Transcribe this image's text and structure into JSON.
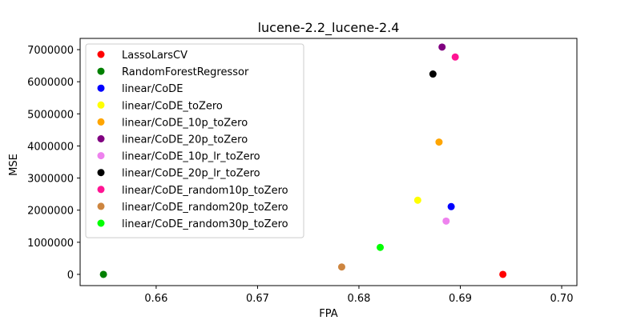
{
  "chart_data": {
    "type": "scatter",
    "title": "lucene-2.2_lucene-2.4",
    "xlabel": "FPA",
    "ylabel": "MSE",
    "xlim": [
      0.6525,
      0.7015
    ],
    "ylim": [
      -350000,
      7350000
    ],
    "xticks": [
      0.66,
      0.67,
      0.68,
      0.69,
      0.7
    ],
    "xtick_labels": [
      "0.66",
      "0.67",
      "0.68",
      "0.69",
      "0.70"
    ],
    "yticks": [
      0,
      1000000,
      2000000,
      3000000,
      4000000,
      5000000,
      6000000,
      7000000
    ],
    "ytick_labels": [
      "0",
      "1000000",
      "2000000",
      "3000000",
      "4000000",
      "5000000",
      "6000000",
      "7000000"
    ],
    "grid": false,
    "legend_position": "upper-left",
    "series": [
      {
        "name": "LassoLarsCV",
        "color": "#ff0000",
        "x": 0.6942,
        "y": 0
      },
      {
        "name": "RandomForestRegressor",
        "color": "#008000",
        "x": 0.6548,
        "y": 0
      },
      {
        "name": "linear/CoDE",
        "color": "#0000ff",
        "x": 0.6891,
        "y": 2110000
      },
      {
        "name": "linear/CoDE_toZero",
        "color": "#ffff00",
        "x": 0.6858,
        "y": 2310000
      },
      {
        "name": "linear/CoDE_10p_toZero",
        "color": "#ffa500",
        "x": 0.6879,
        "y": 4120000
      },
      {
        "name": "linear/CoDE_20p_toZero",
        "color": "#800080",
        "x": 0.6882,
        "y": 7080000
      },
      {
        "name": "linear/CoDE_10p_lr_toZero",
        "color": "#ee82ee",
        "x": 0.6886,
        "y": 1660000
      },
      {
        "name": "linear/CoDE_20p_lr_toZero",
        "color": "#000000",
        "x": 0.6873,
        "y": 6240000
      },
      {
        "name": "linear/CoDE_random10p_toZero",
        "color": "#ff1493",
        "x": 0.6895,
        "y": 6770000
      },
      {
        "name": "linear/CoDE_random20p_toZero",
        "color": "#cd853f",
        "x": 0.6783,
        "y": 230000
      },
      {
        "name": "linear/CoDE_random30p_toZero",
        "color": "#00ff00",
        "x": 0.6821,
        "y": 840000
      }
    ]
  }
}
